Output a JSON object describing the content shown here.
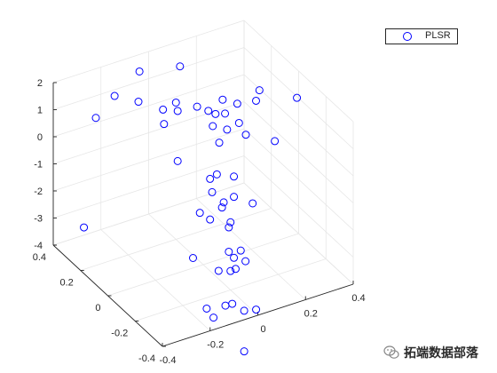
{
  "chart_data": {
    "type": "scatter3d",
    "title": "",
    "xlabel": "",
    "ylabel": "",
    "zlabel": "",
    "xlim": [
      -0.4,
      0.4
    ],
    "ylim": [
      -0.4,
      0.4
    ],
    "zlim": [
      -4,
      2
    ],
    "x_ticks": [
      "-0.4",
      "-0.2",
      "0",
      "0.2",
      "0.4"
    ],
    "y_ticks": [
      "-0.4",
      "-0.2",
      "0",
      "0.2",
      "0.4"
    ],
    "z_ticks": [
      "-4",
      "-3",
      "-2",
      "-1",
      "0",
      "1",
      "2"
    ],
    "grid": true,
    "legend_position": "top-right",
    "marker_color": "#0000ff",
    "series": [
      {
        "name": "PLSR",
        "points": [
          [
            -0.05,
            0.38,
            1.5
          ],
          [
            -0.1,
            0.12,
            1.45
          ],
          [
            0.02,
            0.08,
            1.4
          ],
          [
            0.12,
            0.38,
            1.2
          ],
          [
            0.05,
            0.05,
            1.3
          ],
          [
            0.08,
            0.05,
            1.1
          ],
          [
            0.15,
            0.12,
            1.1
          ],
          [
            0.12,
            0.05,
            1.0
          ],
          [
            0.04,
            0.0,
            1.0
          ],
          [
            0.2,
            0.1,
            0.9
          ],
          [
            0.15,
            0.0,
            0.8
          ],
          [
            0.1,
            0.0,
            0.7
          ],
          [
            0.15,
            -0.05,
            0.6
          ],
          [
            0.05,
            -0.03,
            0.5
          ],
          [
            -0.1,
            0.3,
            0.9
          ],
          [
            -0.2,
            0.3,
            1.4
          ],
          [
            -0.05,
            0.1,
            1.35
          ],
          [
            -0.25,
            0.35,
            0.5
          ],
          [
            0.35,
            0.2,
            0.5
          ],
          [
            0.45,
            0.1,
            0.4
          ],
          [
            0.25,
            0.05,
            1.1
          ],
          [
            0.0,
            0.2,
            1.05
          ],
          [
            -0.05,
            0.2,
            0.4
          ],
          [
            -0.05,
            0.1,
            -0.5
          ],
          [
            0.0,
            -0.1,
            -0.2
          ],
          [
            0.3,
            0.0,
            -0.3
          ],
          [
            0.0,
            -0.05,
            -0.6
          ],
          [
            0.1,
            -0.05,
            -0.8
          ],
          [
            0.0,
            -0.15,
            -1.0
          ],
          [
            -0.1,
            -0.15,
            -1.1
          ],
          [
            -0.02,
            -0.1,
            -0.8
          ],
          [
            0.0,
            -0.2,
            -1.5
          ],
          [
            0.15,
            -0.1,
            -1.7
          ],
          [
            0.1,
            -0.05,
            -1.55
          ],
          [
            0.05,
            -0.05,
            -1.8
          ],
          [
            0.0,
            -0.05,
            -2.1
          ],
          [
            0.05,
            -0.1,
            -2.3
          ],
          [
            -0.1,
            -0.1,
            -3.0
          ],
          [
            -0.05,
            -0.2,
            -3.15
          ],
          [
            0.0,
            -0.2,
            -3.3
          ],
          [
            0.05,
            -0.1,
            -3.2
          ],
          [
            0.1,
            -0.1,
            -3.3
          ],
          [
            0.05,
            -0.15,
            -3.6
          ],
          [
            0.12,
            -0.1,
            -3.75
          ],
          [
            0.1,
            -0.05,
            -3.8
          ],
          [
            -0.05,
            -0.3,
            -3.9
          ],
          [
            -0.05,
            -0.25,
            -4.2
          ],
          [
            -0.1,
            -0.2,
            -4.4
          ],
          [
            0.0,
            -0.3,
            -4.3
          ],
          [
            -0.1,
            -0.25,
            -4.5
          ],
          [
            0.05,
            -0.3,
            -4.4
          ],
          [
            -0.3,
            0.35,
            -3.4
          ],
          [
            0.0,
            -0.3,
            -5.8
          ]
        ]
      }
    ]
  },
  "legend": {
    "label": "PLSR"
  },
  "watermark": {
    "text": "拓端数据部落"
  }
}
